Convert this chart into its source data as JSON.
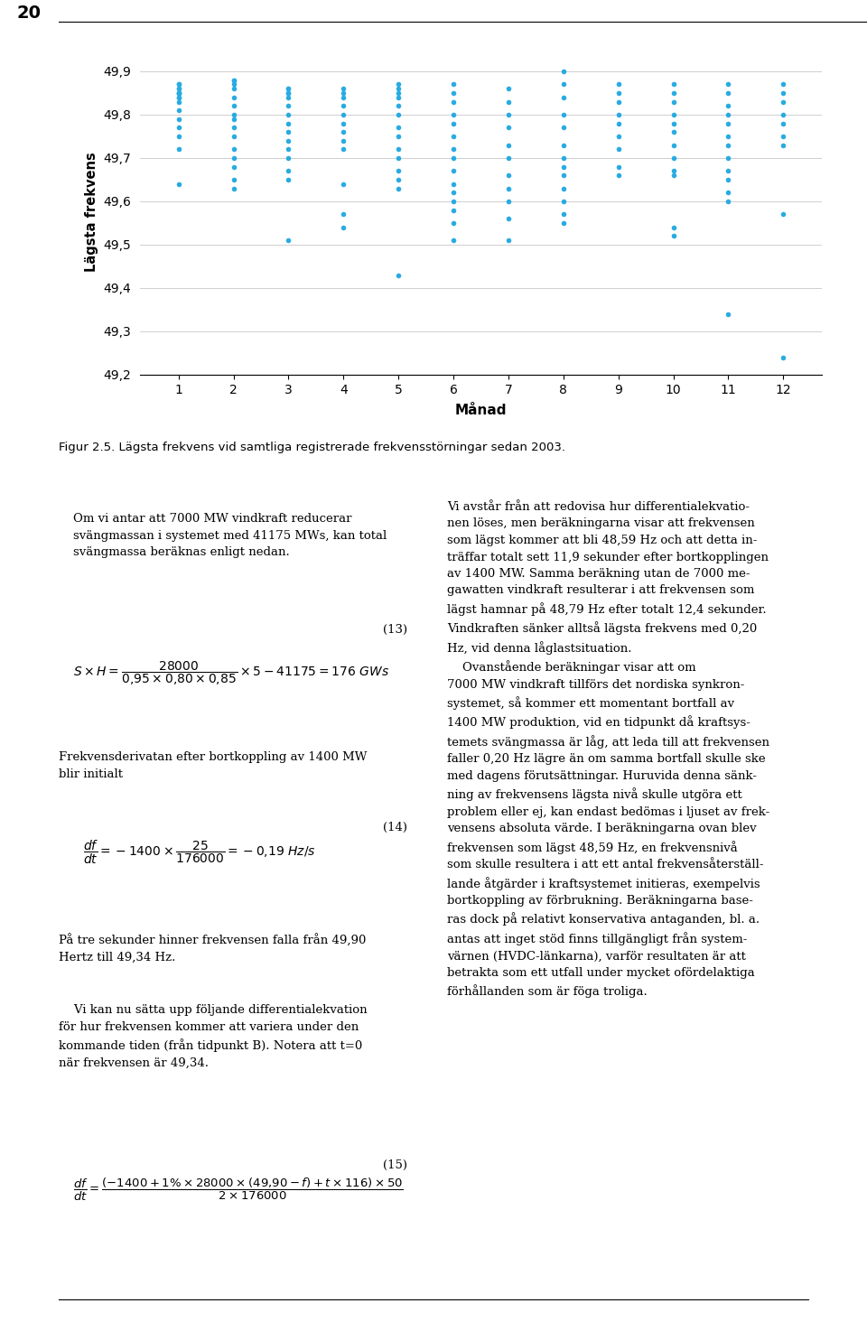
{
  "page_number": "20",
  "figure_caption": "Figur 2.5. Lägsta frekvens vid samtliga registrerade frekvensstörningar sedan 2003.",
  "xlabel": "Månad",
  "ylabel": "Lägsta frekvens",
  "ylim_bottom": 49.2,
  "ylim_top": 49.95,
  "yticks": [
    49.2,
    49.3,
    49.4,
    49.5,
    49.6,
    49.7,
    49.8,
    49.9
  ],
  "xticks": [
    1,
    2,
    3,
    4,
    5,
    6,
    7,
    8,
    9,
    10,
    11,
    12
  ],
  "dot_color": "#29ABE2",
  "scatter_data": {
    "1": [
      49.64,
      49.72,
      49.75,
      49.77,
      49.79,
      49.81,
      49.83,
      49.84,
      49.85,
      49.86,
      49.87,
      49.85,
      49.85,
      49.86,
      49.87,
      49.85,
      49.84
    ],
    "2": [
      49.63,
      49.65,
      49.68,
      49.7,
      49.72,
      49.75,
      49.77,
      49.79,
      49.8,
      49.82,
      49.84,
      49.86,
      49.87,
      49.88,
      49.88
    ],
    "3": [
      49.51,
      49.65,
      49.67,
      49.7,
      49.72,
      49.74,
      49.76,
      49.78,
      49.8,
      49.82,
      49.84,
      49.86,
      49.85,
      49.85,
      49.86
    ],
    "4": [
      49.54,
      49.57,
      49.64,
      49.72,
      49.74,
      49.76,
      49.78,
      49.8,
      49.82,
      49.84,
      49.85,
      49.86
    ],
    "5": [
      49.43,
      49.63,
      49.65,
      49.67,
      49.7,
      49.72,
      49.75,
      49.77,
      49.8,
      49.82,
      49.84,
      49.85,
      49.86,
      49.87
    ],
    "6": [
      49.51,
      49.55,
      49.58,
      49.6,
      49.62,
      49.64,
      49.67,
      49.7,
      49.72,
      49.75,
      49.78,
      49.8,
      49.83,
      49.85,
      49.87
    ],
    "7": [
      49.51,
      49.56,
      49.6,
      49.63,
      49.66,
      49.7,
      49.73,
      49.77,
      49.8,
      49.83,
      49.86
    ],
    "8": [
      49.55,
      49.57,
      49.6,
      49.63,
      49.66,
      49.68,
      49.7,
      49.73,
      49.77,
      49.8,
      49.84,
      49.87,
      49.9
    ],
    "9": [
      49.66,
      49.68,
      49.72,
      49.75,
      49.78,
      49.8,
      49.83,
      49.85,
      49.87
    ],
    "10": [
      49.52,
      49.54,
      49.66,
      49.67,
      49.7,
      49.73,
      49.76,
      49.78,
      49.8,
      49.83,
      49.85,
      49.87
    ],
    "11": [
      49.34,
      49.6,
      49.62,
      49.65,
      49.67,
      49.7,
      49.73,
      49.75,
      49.78,
      49.8,
      49.82,
      49.85,
      49.87
    ],
    "12": [
      49.24,
      49.57,
      49.73,
      49.75,
      49.78,
      49.8,
      49.83,
      49.85,
      49.87
    ]
  },
  "background_color": "#FFFFFF",
  "grid_color": "#C8C8C8",
  "tick_fontsize": 10,
  "body_fontsize": 9.5,
  "caption_fontsize": 9.5
}
